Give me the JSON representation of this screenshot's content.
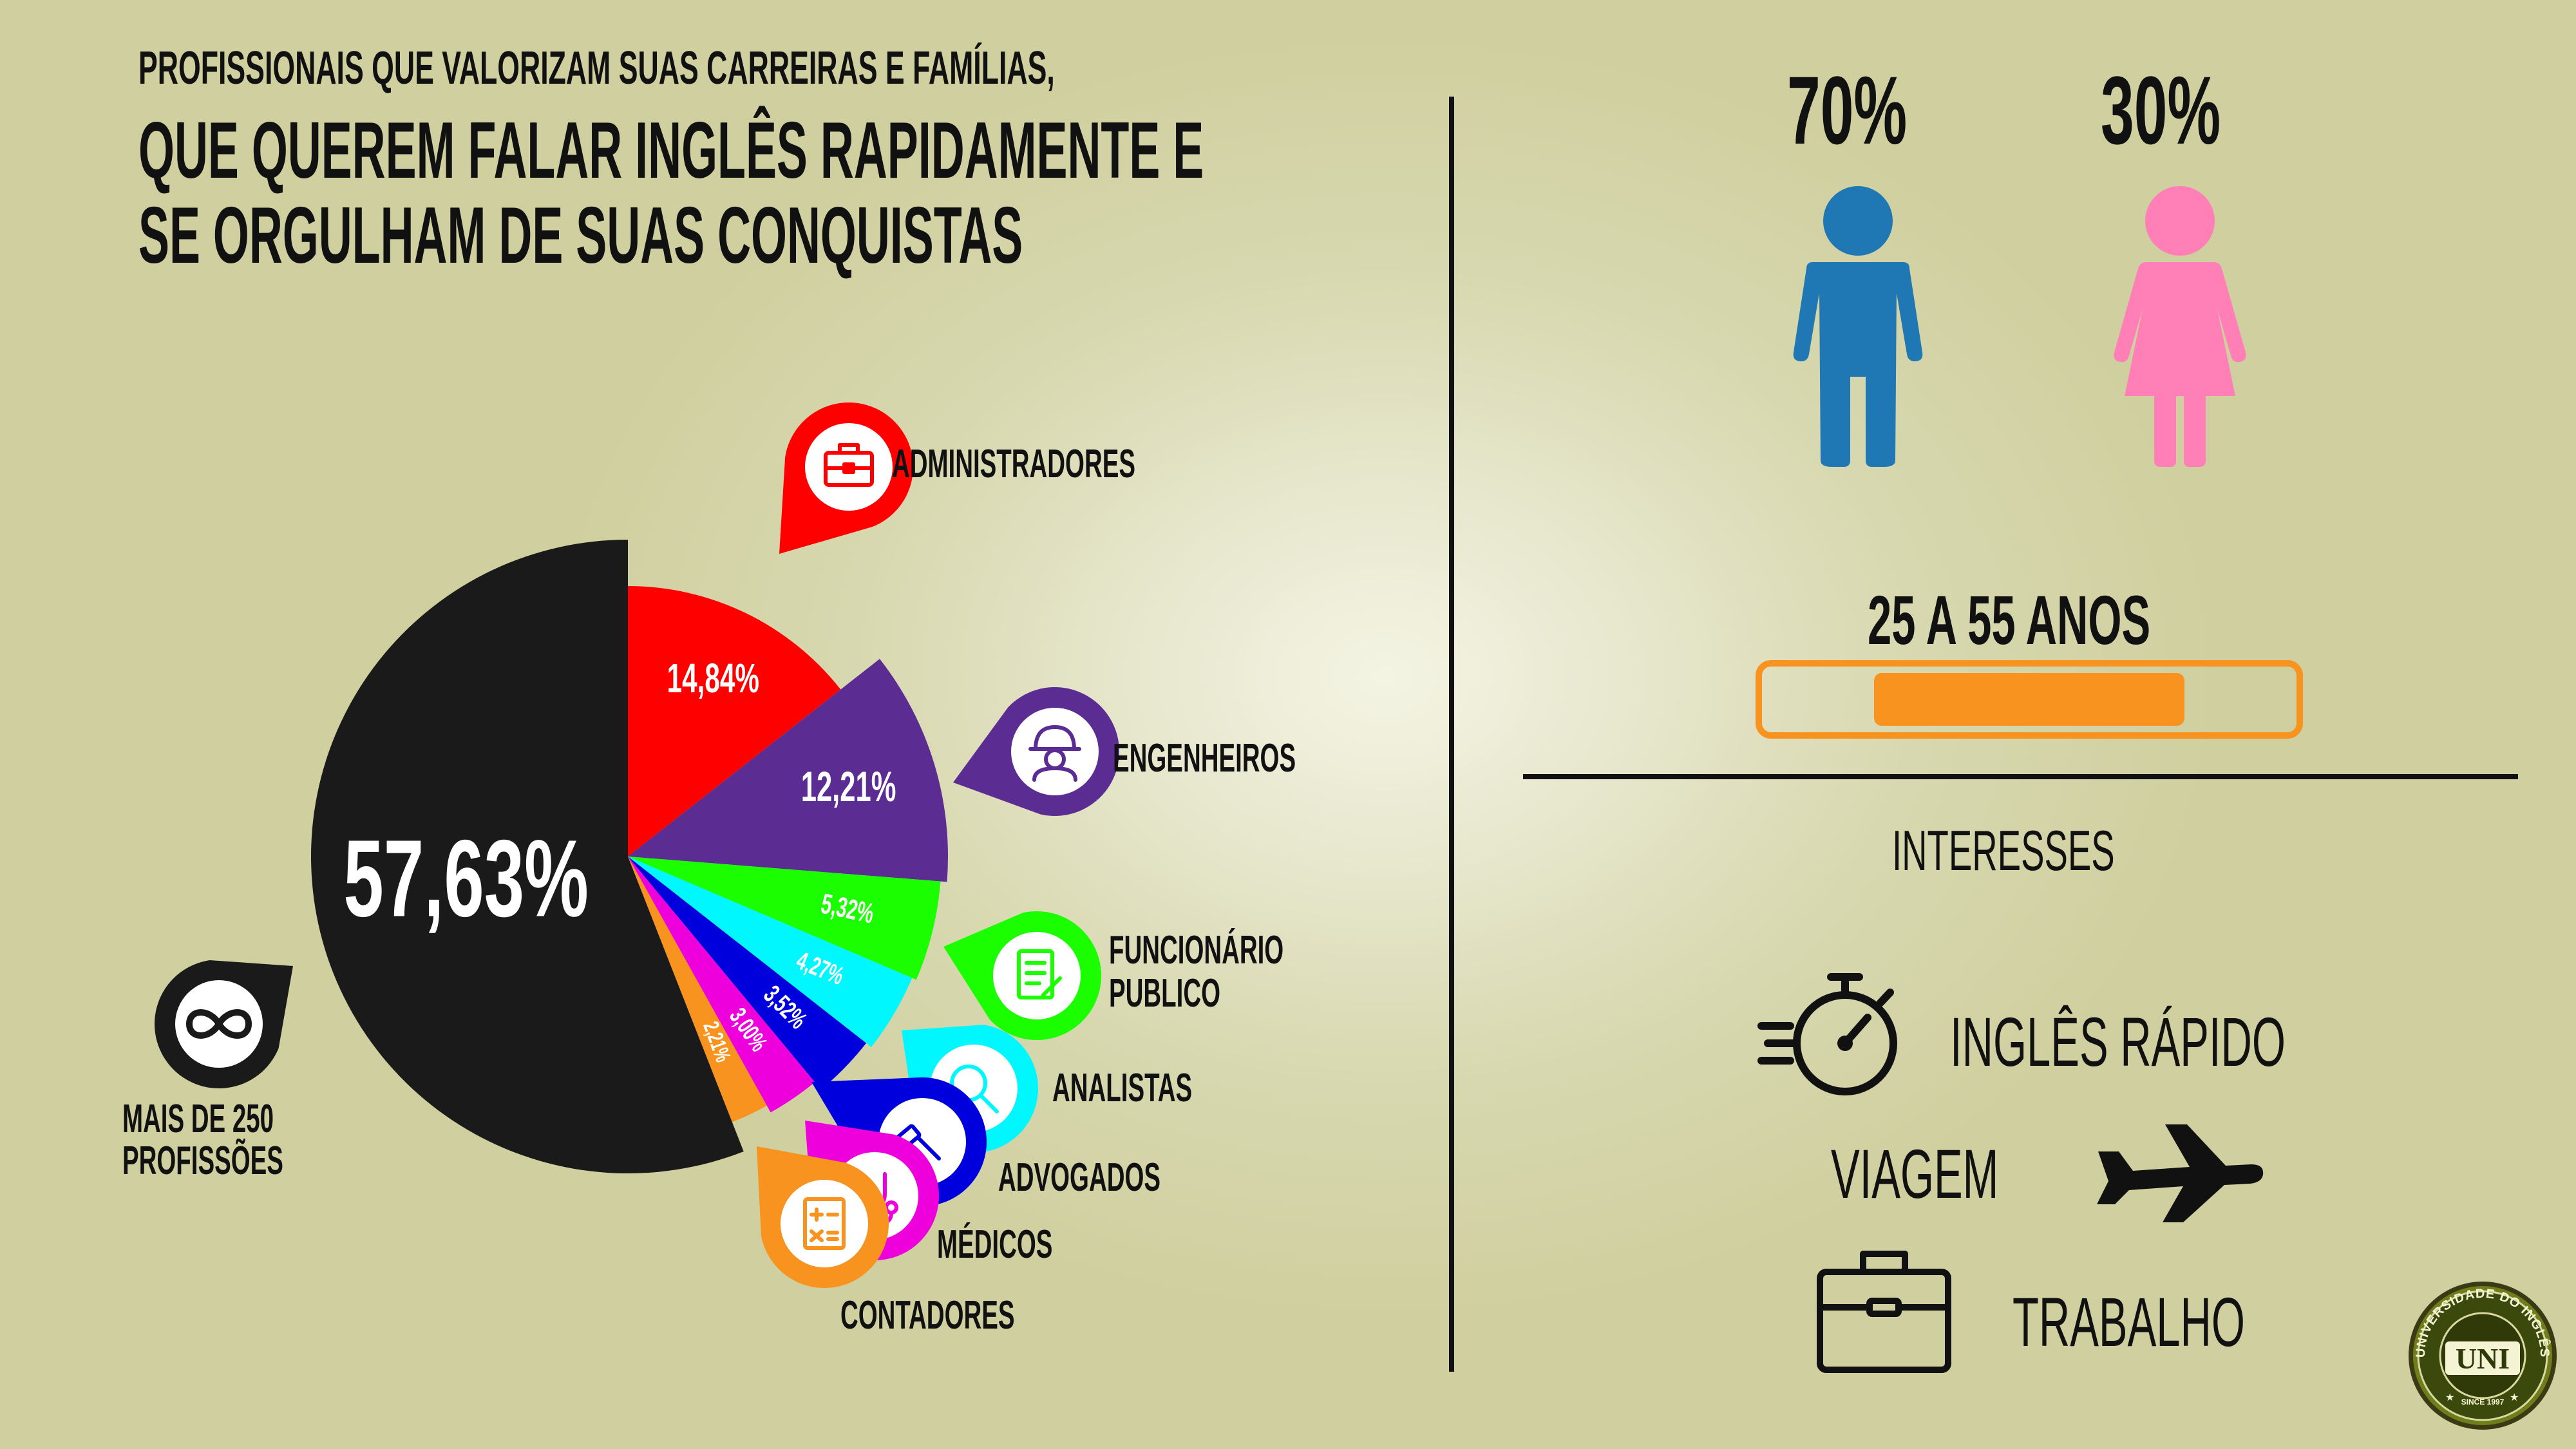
{
  "title": {
    "line1": "PROFISSIONAIS QUE VALORIZAM SUAS CARREIRAS E FAMÍLIAS,",
    "line2": "QUE QUEREM FALAR INGLÊS RAPIDAMENTE E",
    "line3": "SE ORGULHAM DE SUAS CONQUISTAS"
  },
  "chart_data": {
    "type": "pie",
    "title": "",
    "labels": [
      "ADMINISTRADORES",
      "ENGENHEIROS",
      "FUNCIONÁRIO PUBLICO",
      "ANALISTAS",
      "ADVOGADOS",
      "MÉDICOS",
      "CONTADORES",
      "MAIS DE 250 PROFISSÕES"
    ],
    "values": [
      14.84,
      12.21,
      5.32,
      4.27,
      3.52,
      3.0,
      2.21,
      57.63
    ],
    "value_labels": [
      "14,84%",
      "12,21%",
      "5,32%",
      "4,27%",
      "3,52%",
      "3,00%",
      "2,21%",
      "57,63%"
    ],
    "colors": [
      "#ff0000",
      "#5b2c91",
      "#1bfe00",
      "#00f7fd",
      "#0000dd",
      "#ee00dd",
      "#f7931e",
      "#1a1a1a"
    ],
    "legend": "callout markers"
  },
  "labels": {
    "administradores": "ADMINISTRADORES",
    "engenheiros": "ENGENHEIROS",
    "funcionario1": "FUNCIONÁRIO",
    "funcionario2": "PUBLICO",
    "analistas": "ANALISTAS",
    "advogados": "ADVOGADOS",
    "medicos": "MÉDICOS",
    "contadores": "CONTADORES",
    "mais1": "MAIS DE 250",
    "mais2": "PROFISSÕES"
  },
  "gender": {
    "male_pct": "70%",
    "female_pct": "30%",
    "male_color": "#1f78b4",
    "female_color": "#ff7fb6"
  },
  "age": {
    "label": "25 A 55 ANOS",
    "bar_color": "#f7931e",
    "range_start_fraction": 0.21,
    "range_end_fraction": 0.79
  },
  "interests": {
    "heading": "INTERESSES",
    "items": [
      {
        "label": "INGLÊS RÁPIDO",
        "icon": "stopwatch-icon"
      },
      {
        "label": "VIAGEM",
        "icon": "airplane-icon"
      },
      {
        "label": "TRABALHO",
        "icon": "briefcase-icon"
      }
    ]
  },
  "logo": {
    "ring_text": "UNIVERSIDADE DO INGLÊS",
    "center": "UNI",
    "since": "SINCE 1997"
  }
}
